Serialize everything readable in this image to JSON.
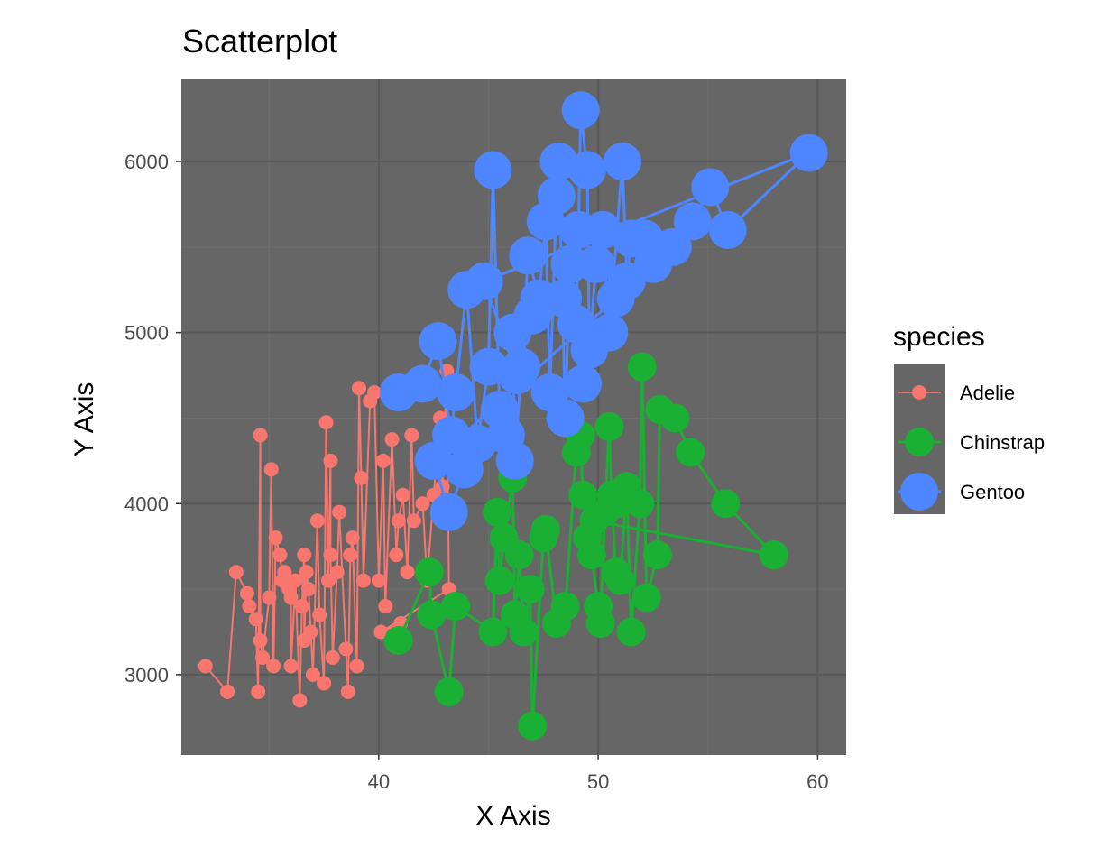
{
  "chart_data": {
    "type": "scatter",
    "title": "Scatterplot",
    "xlabel": "X Axis",
    "ylabel": "Y Axis",
    "xlim": [
      31,
      61.3
    ],
    "ylim": [
      2530,
      6480
    ],
    "x_ticks": [
      40,
      50,
      60
    ],
    "y_ticks": [
      3000,
      4000,
      5000,
      6000
    ],
    "x_minor": [
      35,
      45,
      55
    ],
    "y_minor": [
      3500,
      4500,
      5500
    ],
    "grid": true,
    "background": "#666666",
    "legend": {
      "title": "species",
      "position": "right",
      "background": "#666666"
    },
    "series": [
      {
        "name": "Adelie",
        "color": "#f8766d",
        "size": "small",
        "points": [
          [
            32.1,
            3050
          ],
          [
            33.1,
            2900
          ],
          [
            33.5,
            3600
          ],
          [
            34.0,
            3475
          ],
          [
            34.1,
            3400
          ],
          [
            34.4,
            3325
          ],
          [
            34.5,
            2900
          ],
          [
            34.6,
            4400
          ],
          [
            34.6,
            3200
          ],
          [
            34.7,
            3100
          ],
          [
            35.0,
            3450
          ],
          [
            35.1,
            4200
          ],
          [
            35.2,
            3050
          ],
          [
            35.3,
            3800
          ],
          [
            35.5,
            3700
          ],
          [
            35.6,
            3550
          ],
          [
            35.7,
            3600
          ],
          [
            35.9,
            3500
          ],
          [
            36.0,
            3450
          ],
          [
            36.0,
            3050
          ],
          [
            36.2,
            3550
          ],
          [
            36.4,
            2850
          ],
          [
            36.5,
            3400
          ],
          [
            36.6,
            3700
          ],
          [
            36.6,
            3200
          ],
          [
            36.7,
            3600
          ],
          [
            36.8,
            3500
          ],
          [
            36.9,
            3250
          ],
          [
            37.0,
            3000
          ],
          [
            37.2,
            3900
          ],
          [
            37.3,
            3350
          ],
          [
            37.5,
            2950
          ],
          [
            37.6,
            4475
          ],
          [
            37.7,
            3550
          ],
          [
            37.8,
            4250
          ],
          [
            37.8,
            3700
          ],
          [
            37.9,
            3100
          ],
          [
            38.1,
            3600
          ],
          [
            38.2,
            3950
          ],
          [
            38.5,
            3150
          ],
          [
            38.6,
            2900
          ],
          [
            38.7,
            3700
          ],
          [
            38.8,
            3800
          ],
          [
            39.0,
            3050
          ],
          [
            39.1,
            4675
          ],
          [
            39.2,
            4150
          ],
          [
            39.3,
            3550
          ],
          [
            39.6,
            4600
          ],
          [
            39.8,
            4650
          ],
          [
            40.0,
            3550
          ],
          [
            40.2,
            4250
          ],
          [
            40.3,
            3400
          ],
          [
            40.6,
            4375
          ],
          [
            40.8,
            3700
          ],
          [
            40.9,
            3900
          ],
          [
            41.1,
            4050
          ],
          [
            41.3,
            3600
          ],
          [
            41.5,
            4400
          ],
          [
            41.6,
            3900
          ],
          [
            42.0,
            4000
          ],
          [
            42.2,
            3550
          ],
          [
            42.5,
            4050
          ],
          [
            42.8,
            4500
          ],
          [
            42.9,
            4100
          ],
          [
            43.1,
            4775
          ],
          [
            43.2,
            3500
          ],
          [
            40.1,
            3250
          ],
          [
            41.0,
            3300
          ]
        ]
      },
      {
        "name": "Chinstrap",
        "color": "#19b033",
        "size": "medium",
        "points": [
          [
            40.9,
            3200
          ],
          [
            42.3,
            3600
          ],
          [
            42.4,
            3350
          ],
          [
            43.2,
            2900
          ],
          [
            43.5,
            3400
          ],
          [
            45.2,
            3250
          ],
          [
            45.4,
            3950
          ],
          [
            45.5,
            3550
          ],
          [
            45.7,
            3800
          ],
          [
            46.1,
            4150
          ],
          [
            46.2,
            3350
          ],
          [
            46.4,
            3700
          ],
          [
            46.6,
            3250
          ],
          [
            46.9,
            3500
          ],
          [
            47.0,
            2700
          ],
          [
            47.5,
            3800
          ],
          [
            47.6,
            3850
          ],
          [
            48.1,
            3300
          ],
          [
            48.5,
            3400
          ],
          [
            49.0,
            4300
          ],
          [
            49.2,
            4400
          ],
          [
            49.3,
            4050
          ],
          [
            49.5,
            3800
          ],
          [
            49.7,
            3700
          ],
          [
            50.0,
            3400
          ],
          [
            50.1,
            3300
          ],
          [
            50.3,
            3950
          ],
          [
            50.5,
            4450
          ],
          [
            50.6,
            4050
          ],
          [
            50.8,
            3600
          ],
          [
            51.0,
            3550
          ],
          [
            51.3,
            4100
          ],
          [
            51.5,
            3250
          ],
          [
            51.9,
            4000
          ],
          [
            52.0,
            4800
          ],
          [
            52.2,
            3450
          ],
          [
            52.7,
            3700
          ],
          [
            52.8,
            4550
          ],
          [
            53.5,
            4500
          ],
          [
            54.2,
            4300
          ],
          [
            55.8,
            4000
          ],
          [
            58.0,
            3700
          ],
          [
            49.8,
            3900
          ],
          [
            50.9,
            4000
          ]
        ]
      },
      {
        "name": "Gentoo",
        "color": "#4e86ff",
        "size": "large",
        "points": [
          [
            40.9,
            4650
          ],
          [
            42.0,
            4700
          ],
          [
            42.7,
            4950
          ],
          [
            43.3,
            4400
          ],
          [
            43.5,
            4650
          ],
          [
            44.0,
            5250
          ],
          [
            44.5,
            4350
          ],
          [
            45.0,
            4800
          ],
          [
            45.2,
            5950
          ],
          [
            45.5,
            4550
          ],
          [
            45.8,
            4400
          ],
          [
            46.1,
            5000
          ],
          [
            46.2,
            4250
          ],
          [
            46.5,
            4800
          ],
          [
            46.8,
            5450
          ],
          [
            47.3,
            5200
          ],
          [
            47.6,
            5650
          ],
          [
            47.8,
            4650
          ],
          [
            48.1,
            5800
          ],
          [
            48.2,
            6000
          ],
          [
            48.5,
            4500
          ],
          [
            48.7,
            5400
          ],
          [
            49.0,
            5050
          ],
          [
            49.1,
            5600
          ],
          [
            49.2,
            6300
          ],
          [
            49.5,
            5950
          ],
          [
            49.6,
            4900
          ],
          [
            49.9,
            5400
          ],
          [
            50.2,
            5600
          ],
          [
            50.5,
            5000
          ],
          [
            51.1,
            6000
          ],
          [
            51.3,
            5300
          ],
          [
            51.5,
            5550
          ],
          [
            52.1,
            5550
          ],
          [
            52.5,
            5400
          ],
          [
            53.4,
            5500
          ],
          [
            54.3,
            5650
          ],
          [
            55.1,
            5850
          ],
          [
            55.9,
            5600
          ],
          [
            59.6,
            6050
          ],
          [
            44.8,
            5300
          ],
          [
            46.3,
            4750
          ],
          [
            47.0,
            5100
          ],
          [
            48.4,
            5200
          ],
          [
            49.3,
            4700
          ],
          [
            50.8,
            5200
          ],
          [
            42.5,
            4250
          ],
          [
            43.2,
            3950
          ],
          [
            43.9,
            4200
          ]
        ]
      }
    ]
  }
}
